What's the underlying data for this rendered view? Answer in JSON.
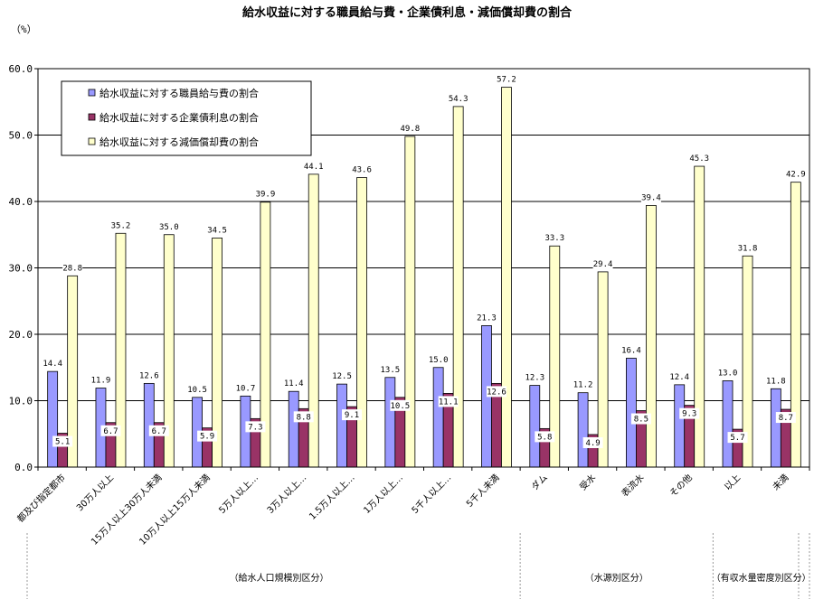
{
  "chart_data": {
    "type": "bar",
    "title": "給水収益に対する職員給与費・企業債利息・減価償却費の割合",
    "unit_label": "（%）",
    "ylim": [
      0,
      60
    ],
    "yticks": [
      "0.0",
      "10.0",
      "20.0",
      "30.0",
      "40.0",
      "50.0",
      "60.0"
    ],
    "grid": true,
    "legend_position": "top-left",
    "categories": [
      "都及び指定都市",
      "30万人以上",
      "15万人以上30万人未満",
      "10万人以上15万人未満",
      "5万人以上…",
      "3万人以上…",
      "1.5万人以上…",
      "1万人以上…",
      "5千人以上…",
      "5千人未満",
      "ダム",
      "受水",
      "表流水",
      "その他",
      "以上",
      "未満"
    ],
    "series": [
      {
        "name": "給水収益に対する職員給与費の割合",
        "color": "#9999ff",
        "values": [
          14.4,
          11.9,
          12.6,
          10.5,
          10.7,
          11.4,
          12.5,
          13.5,
          15.0,
          21.3,
          12.3,
          11.2,
          16.4,
          12.4,
          13.0,
          11.8
        ]
      },
      {
        "name": "給水収益に対する企業債利息の割合",
        "color": "#993366",
        "values": [
          5.1,
          6.7,
          6.7,
          5.9,
          7.3,
          8.8,
          9.1,
          10.5,
          11.1,
          12.6,
          5.8,
          4.9,
          8.5,
          9.3,
          5.7,
          8.7
        ]
      },
      {
        "name": "給水収益に対する減価償却費の割合",
        "color": "#ffffcc",
        "values": [
          28.8,
          35.2,
          35.0,
          34.5,
          39.9,
          44.1,
          43.6,
          49.8,
          54.3,
          57.2,
          33.3,
          29.4,
          39.4,
          45.3,
          31.8,
          42.9
        ]
      }
    ],
    "groups": [
      {
        "label": "（給水人口規模別区分）",
        "from": 0,
        "to": 9
      },
      {
        "label": "（水源別区分）",
        "from": 10,
        "to": 13
      },
      {
        "label": "（有収水量密度別区分）",
        "from": 14,
        "to": 15
      }
    ]
  }
}
